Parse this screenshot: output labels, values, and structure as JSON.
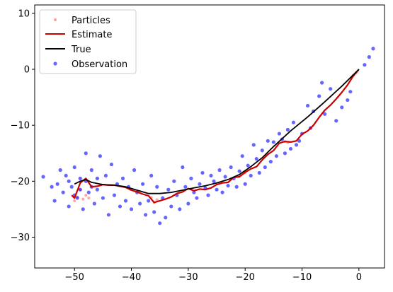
{
  "chart_data": {
    "type": "scatter",
    "title": "",
    "xlabel": "",
    "ylabel": "",
    "xlim": [
      -57,
      4.5
    ],
    "ylim": [
      -35.5,
      11.5
    ],
    "xticks": [
      -50,
      -40,
      -30,
      -20,
      -10,
      0
    ],
    "yticks": [
      -30,
      -20,
      -10,
      0,
      10
    ],
    "xtick_labels": [
      "−50",
      "−40",
      "−30",
      "−20",
      "−10",
      "0"
    ],
    "ytick_labels": [
      "−30",
      "−20",
      "−10",
      "0",
      "10"
    ],
    "grid": false,
    "legend": {
      "position": "top-left",
      "entries": [
        {
          "label": "Particles",
          "marker": "dot",
          "color": "#ff9e9e"
        },
        {
          "label": "Estimate",
          "marker": "line",
          "color": "#cc0000"
        },
        {
          "label": "True",
          "marker": "line",
          "color": "#000000"
        },
        {
          "label": "Observation",
          "marker": "dot",
          "color": "#0000ff"
        }
      ]
    },
    "series": [
      {
        "name": "True",
        "type": "line",
        "color": "#000000",
        "x": [
          0,
          -3,
          -6,
          -9,
          -12,
          -15,
          -17,
          -19,
          -21,
          -23,
          -25,
          -27,
          -29,
          -31,
          -33,
          -35,
          -37,
          -39,
          -41,
          -43,
          -45,
          -47,
          -48,
          -49,
          -50
        ],
        "y": [
          0,
          -3,
          -5.8,
          -8.5,
          -11,
          -13.8,
          -15.8,
          -17.4,
          -18.8,
          -19.7,
          -20.3,
          -20.8,
          -21.2,
          -21.6,
          -22,
          -22.2,
          -22.2,
          -21.6,
          -21,
          -20.7,
          -20.6,
          -20.2,
          -19.7,
          -20,
          -20.5
        ]
      },
      {
        "name": "Estimate",
        "type": "line",
        "color": "#cc0000",
        "x": [
          0,
          -1,
          -2,
          -3,
          -4,
          -5,
          -6,
          -7,
          -8,
          -9,
          -10,
          -11,
          -12,
          -13,
          -14,
          -15,
          -16,
          -17,
          -18,
          -19,
          -20,
          -21,
          -22,
          -23,
          -24,
          -25,
          -26,
          -27,
          -28,
          -29,
          -30,
          -31,
          -32,
          -33,
          -34,
          -35,
          -36,
          -37,
          -38,
          -39,
          -40,
          -41,
          -42,
          -43,
          -44,
          -45,
          -46,
          -47,
          -48,
          -48.5,
          -49,
          -49.5,
          -50,
          -50.5
        ],
        "y": [
          0,
          -1.2,
          -2.8,
          -4.1,
          -5.3,
          -6.4,
          -7.3,
          -8.6,
          -10,
          -11,
          -11.6,
          -12.8,
          -13,
          -12.9,
          -13.2,
          -14.5,
          -15.2,
          -16.2,
          -17.4,
          -17.8,
          -18.4,
          -19.2,
          -19.3,
          -20.2,
          -20.3,
          -20.6,
          -21.2,
          -21.5,
          -21.4,
          -21.7,
          -21.3,
          -21.9,
          -22.2,
          -22.8,
          -23.2,
          -23.5,
          -23.8,
          -22.6,
          -22.3,
          -21.9,
          -21.6,
          -21.1,
          -20.9,
          -20.7,
          -20.7,
          -20.6,
          -20.9,
          -21,
          -19.5,
          -19.9,
          -20.3,
          -21.7,
          -23,
          -22.5
        ]
      },
      {
        "name": "Observation",
        "type": "scatter",
        "color": "#0000ff",
        "points": [
          [
            1.8,
            2.2
          ],
          [
            2.5,
            3.7
          ],
          [
            1.0,
            0.8
          ],
          [
            -1.5,
            -4.0
          ],
          [
            -2.0,
            -5.5
          ],
          [
            -3.0,
            -6.8
          ],
          [
            -4.0,
            -9.2
          ],
          [
            -5.0,
            -3.5
          ],
          [
            -6.0,
            -8.0
          ],
          [
            -6.5,
            -2.4
          ],
          [
            -7.0,
            -4.8
          ],
          [
            -8.0,
            -7.5
          ],
          [
            -8.5,
            -10.5
          ],
          [
            -9.0,
            -6.5
          ],
          [
            -10.0,
            -11.5
          ],
          [
            -10.5,
            -12.8
          ],
          [
            -11.0,
            -13.5
          ],
          [
            -11.5,
            -9.5
          ],
          [
            -12.0,
            -14.2
          ],
          [
            -12.5,
            -10.8
          ],
          [
            -13.0,
            -15.0
          ],
          [
            -13.5,
            -12.5
          ],
          [
            -14.0,
            -11.5
          ],
          [
            -14.5,
            -15.5
          ],
          [
            -15.0,
            -13.0
          ],
          [
            -15.5,
            -16.5
          ],
          [
            -16.0,
            -12.8
          ],
          [
            -16.5,
            -17.5
          ],
          [
            -17.0,
            -14.5
          ],
          [
            -17.5,
            -18.5
          ],
          [
            -18.0,
            -16.0
          ],
          [
            -18.5,
            -13.5
          ],
          [
            -19.0,
            -19.0
          ],
          [
            -19.5,
            -17.2
          ],
          [
            -20.0,
            -20.5
          ],
          [
            -20.5,
            -15.5
          ],
          [
            -21.0,
            -18.2
          ],
          [
            -21.5,
            -21.0
          ],
          [
            -22.0,
            -19.5
          ],
          [
            -22.5,
            -17.5
          ],
          [
            -23.0,
            -20.8
          ],
          [
            -23.5,
            -19.2
          ],
          [
            -24.0,
            -22.0
          ],
          [
            -24.5,
            -18.0
          ],
          [
            -25.0,
            -21.5
          ],
          [
            -25.5,
            -20.0
          ],
          [
            -26.0,
            -19.0
          ],
          [
            -26.5,
            -22.5
          ],
          [
            -27.0,
            -21.2
          ],
          [
            -27.5,
            -18.5
          ],
          [
            -28.0,
            -20.5
          ],
          [
            -28.5,
            -23.0
          ],
          [
            -29.0,
            -22.0
          ],
          [
            -29.5,
            -19.5
          ],
          [
            -30.0,
            -24.0
          ],
          [
            -30.5,
            -21.0
          ],
          [
            -31.0,
            -17.5
          ],
          [
            -31.5,
            -25.0
          ],
          [
            -32.0,
            -22.5
          ],
          [
            -32.5,
            -20.0
          ],
          [
            -33.0,
            -24.5
          ],
          [
            -33.5,
            -21.5
          ],
          [
            -34.0,
            -26.5
          ],
          [
            -34.5,
            -23.0
          ],
          [
            -35.0,
            -27.5
          ],
          [
            -35.5,
            -21.0
          ],
          [
            -36.0,
            -25.5
          ],
          [
            -36.5,
            -19.0
          ],
          [
            -37.0,
            -23.5
          ],
          [
            -37.5,
            -26.0
          ],
          [
            -38.0,
            -20.5
          ],
          [
            -38.5,
            -24.0
          ],
          [
            -39.0,
            -22.0
          ],
          [
            -39.5,
            -18.0
          ],
          [
            -40.0,
            -25.0
          ],
          [
            -40.5,
            -21.0
          ],
          [
            -41.0,
            -23.5
          ],
          [
            -41.5,
            -19.5
          ],
          [
            -42.0,
            -24.5
          ],
          [
            -42.5,
            -20.5
          ],
          [
            -43.0,
            -22.5
          ],
          [
            -43.5,
            -17.0
          ],
          [
            -44.0,
            -26.0
          ],
          [
            -44.5,
            -19.0
          ],
          [
            -45.0,
            -23.0
          ],
          [
            -45.5,
            -15.5
          ],
          [
            -46.0,
            -21.5
          ],
          [
            -46.5,
            -24.0
          ],
          [
            -47.0,
            -18.0
          ],
          [
            -47.5,
            -22.0
          ],
          [
            -48.0,
            -15.0
          ],
          [
            -48.5,
            -25.0
          ],
          [
            -49.0,
            -19.5
          ],
          [
            -49.5,
            -23.0
          ],
          [
            -50.0,
            -17.5
          ],
          [
            -50.5,
            -21.0
          ],
          [
            -51.0,
            -24.5
          ],
          [
            -51.5,
            -19.0
          ],
          [
            -52.0,
            -22.0
          ],
          [
            -52.5,
            -18.0
          ],
          [
            -53.0,
            -20.5
          ],
          [
            -53.5,
            -23.5
          ],
          [
            -54.0,
            -21.0
          ],
          [
            -55.5,
            -19.2
          ],
          [
            -49.0,
            -21.5
          ],
          [
            -48.0,
            -20.0
          ],
          [
            -47.0,
            -21.0
          ],
          [
            -46.0,
            -19.5
          ],
          [
            -50.0,
            -22.5
          ],
          [
            -51.0,
            -20.0
          ]
        ]
      },
      {
        "name": "Particles",
        "type": "scatter",
        "color": "#ff9e9e",
        "points": [
          [
            -48.5,
            -23.2
          ],
          [
            -49.5,
            -22.8
          ],
          [
            -50.0,
            -23.5
          ],
          [
            -48.0,
            -22.5
          ],
          [
            -47.5,
            -23.0
          ],
          [
            -49.0,
            -21.5
          ],
          [
            -48.2,
            -19.8
          ],
          [
            -36.0,
            -23.8
          ],
          [
            -35.5,
            -23.3
          ],
          [
            -36.5,
            -22.9
          ],
          [
            -13.0,
            -12.9
          ],
          [
            -12.5,
            -13.1
          ],
          [
            -0.5,
            -0.6
          ],
          [
            -1.0,
            -1.1
          ],
          [
            -20.0,
            -18.5
          ],
          [
            -21.0,
            -19.0
          ]
        ]
      }
    ]
  }
}
